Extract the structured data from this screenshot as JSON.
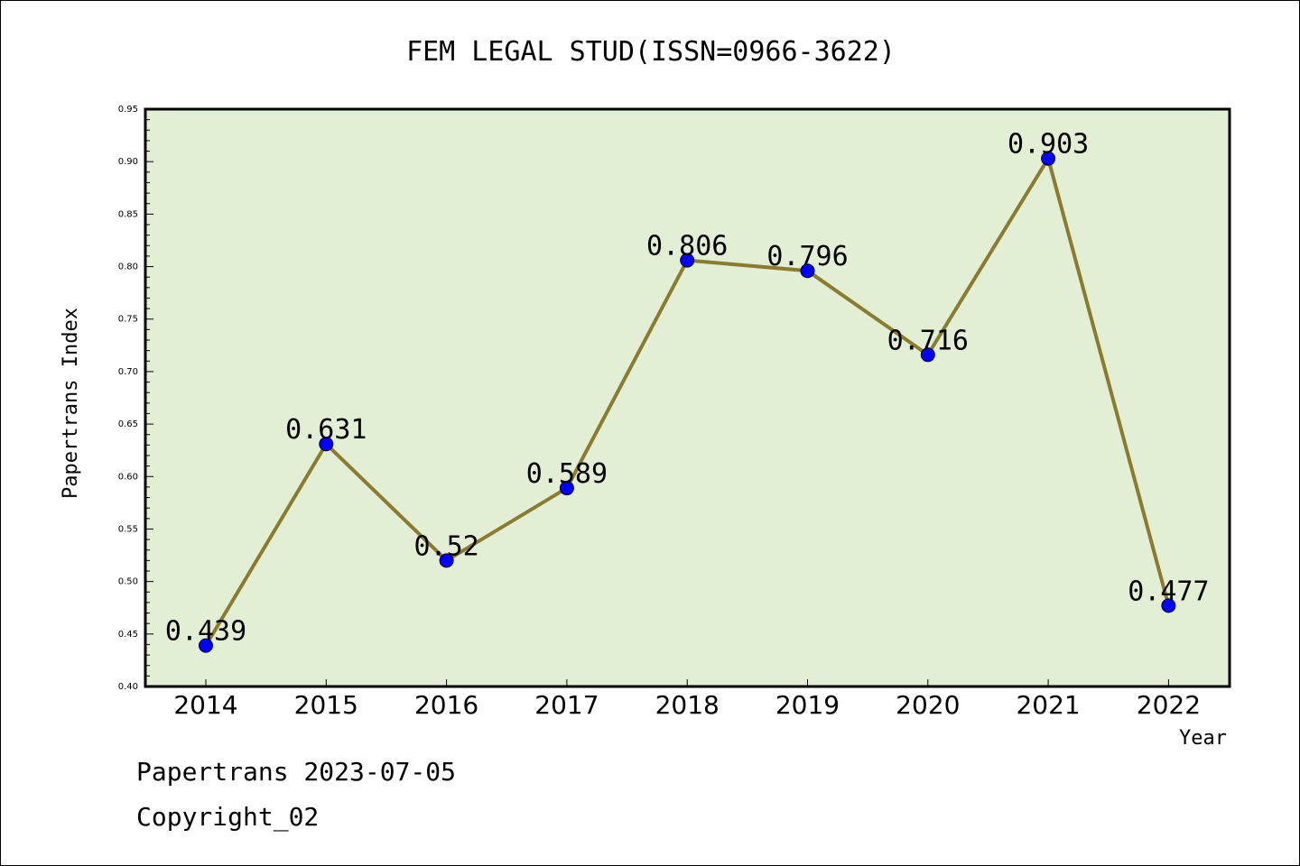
{
  "chart_data": {
    "type": "line",
    "title": "FEM LEGAL STUD(ISSN=0966-3622)",
    "xlabel": "Year",
    "ylabel": "Papertrans Index",
    "x": [
      "2014",
      "2015",
      "2016",
      "2017",
      "2018",
      "2019",
      "2020",
      "2021",
      "2022"
    ],
    "values": [
      0.439,
      0.631,
      0.52,
      0.589,
      0.806,
      0.796,
      0.716,
      0.903,
      0.477
    ],
    "data_labels": [
      "0.439",
      "0.631",
      "0.52",
      "0.589",
      "0.806",
      "0.796",
      "0.716",
      "0.903",
      "0.477"
    ],
    "ylim": [
      0.4,
      0.95
    ],
    "yticks": [
      "0.40",
      "0.45",
      "0.50",
      "0.55",
      "0.60",
      "0.65",
      "0.70",
      "0.75",
      "0.80",
      "0.85",
      "0.90",
      "0.95"
    ],
    "grid": false,
    "legend": "none",
    "colors": {
      "plot_background": "#e2efd4",
      "line": "#8b7b2f",
      "marker": "#0000ff"
    }
  },
  "footer": {
    "line1": "Papertrans 2023-07-05",
    "line2": "Copyright_02"
  }
}
